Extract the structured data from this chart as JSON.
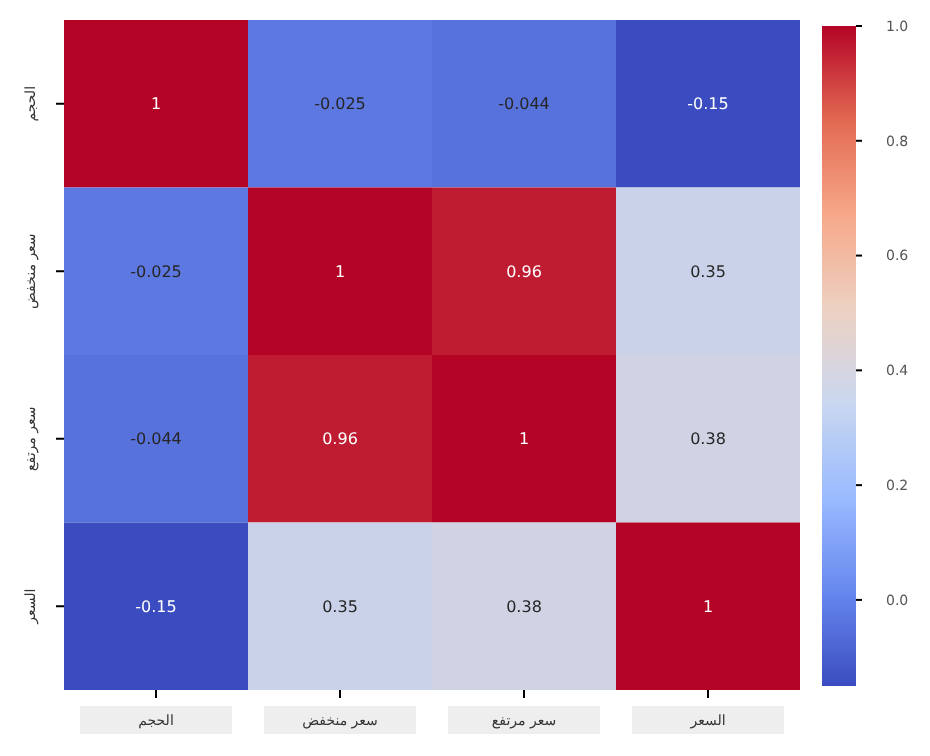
{
  "chart_data": {
    "type": "heatmap",
    "categories": [
      "الحجم",
      "سعر منخفض",
      "سعر مرتفع",
      "السعر"
    ],
    "y_categories": [
      "الحجم",
      "سعر منخفض",
      "سعر مرتفع",
      "السعر"
    ],
    "cells": [
      [
        1,
        -0.025,
        -0.044,
        -0.15
      ],
      [
        -0.025,
        1,
        0.96,
        0.35
      ],
      [
        -0.044,
        0.96,
        1,
        0.38
      ],
      [
        -0.15,
        0.35,
        0.38,
        1
      ]
    ],
    "clim": [
      -0.15,
      1
    ],
    "cticks": [
      {
        "value": 0,
        "label": "0.0"
      },
      {
        "value": 0.2,
        "label": "0.2"
      },
      {
        "value": 0.4,
        "label": "0.4"
      },
      {
        "value": 0.6,
        "label": "0.6"
      },
      {
        "value": 0.8,
        "label": "0.8"
      },
      {
        "value": 1,
        "label": "1.0"
      }
    ],
    "data_labels": true
  }
}
